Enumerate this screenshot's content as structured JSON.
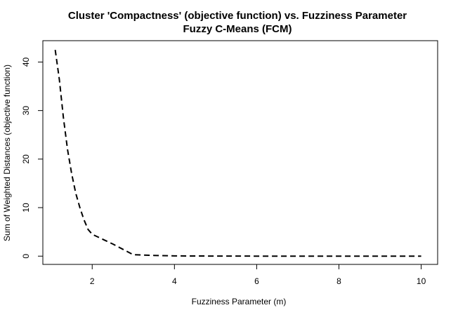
{
  "chart_data": {
    "type": "line",
    "title": "Cluster 'Compactness' (objective function) vs. Fuzziness Parameter",
    "subtitle": "Fuzzy C-Means (FCM)",
    "xlabel": "Fuzziness Parameter (m)",
    "ylabel": "Sum of Weighted Distances (objective function)",
    "xlim": [
      0.8,
      10.4
    ],
    "ylim": [
      -1.7,
      44.4
    ],
    "x_ticks": [
      2,
      4,
      6,
      8,
      10
    ],
    "y_ticks": [
      0,
      10,
      20,
      30,
      40
    ],
    "x_tick_labels": [
      "2",
      "4",
      "6",
      "8",
      "10"
    ],
    "y_tick_labels": [
      "0",
      "10",
      "20",
      "30",
      "40"
    ],
    "grid": false,
    "line_style": "dashed",
    "line_color": "#000000",
    "series": [
      {
        "x": [
          1.1,
          1.2,
          1.3,
          1.4,
          1.5,
          1.6,
          1.7,
          1.8,
          1.9,
          2,
          2.5,
          3,
          3.5,
          4,
          5,
          6,
          7,
          8,
          9,
          10
        ],
        "values": [
          42.5,
          36.5,
          28.5,
          22,
          17,
          13,
          10,
          7.5,
          5.5,
          4.5,
          2.5,
          0.3,
          0.15,
          0.05,
          0.02,
          0.01,
          0.01,
          0.0,
          0.0,
          0.0
        ]
      }
    ]
  }
}
